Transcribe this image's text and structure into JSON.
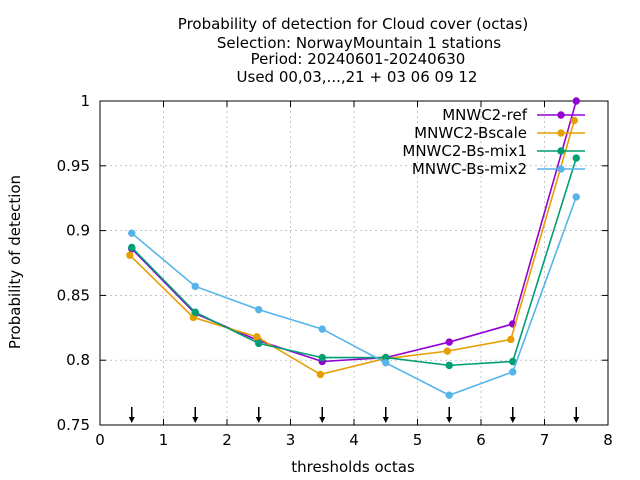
{
  "chart_data": {
    "type": "line",
    "title_lines": [
      "Probability of detection  for Cloud cover (octas)",
      "Selection: NorwayMountain      1 stations",
      "Period: 20240601-20240630",
      "Used 00,03,...,21 + 03 06 09 12"
    ],
    "xlabel": "thresholds octas",
    "ylabel": "Probability of detection",
    "xlim": [
      0,
      8
    ],
    "ylim": [
      0.75,
      1.0
    ],
    "x_ticks": [
      "0",
      "1",
      "2",
      "3",
      "4",
      "5",
      "6",
      "7",
      "8"
    ],
    "y_ticks": [
      "0.75",
      "0.8",
      "0.85",
      "0.9",
      "0.95",
      "1"
    ],
    "x_tick_values": [
      0,
      1,
      2,
      3,
      4,
      5,
      6,
      7,
      8
    ],
    "y_tick_values": [
      0.75,
      0.8,
      0.85,
      0.9,
      0.95,
      1.0
    ],
    "grid": true,
    "legend_position": "top-right",
    "arrow_markers_x": [
      0.5,
      1.5,
      2.5,
      3.5,
      4.5,
      5.5,
      6.5,
      7.5
    ],
    "x": [
      0.5,
      1.5,
      2.5,
      3.5,
      4.5,
      5.5,
      6.5,
      7.5
    ],
    "series": [
      {
        "name": "MNWC2-ref",
        "color": "#9400d3",
        "x": [
          0.5,
          1.5,
          2.5,
          3.5,
          4.5,
          5.5,
          6.5,
          7.5
        ],
        "values": [
          0.886,
          0.836,
          0.815,
          0.799,
          0.802,
          0.814,
          0.828,
          1.0
        ]
      },
      {
        "name": "MNWC2-Bscale",
        "color": "#e69f00",
        "x": [
          0.47,
          1.47,
          2.47,
          3.47,
          4.47,
          5.47,
          6.47,
          7.47
        ],
        "values": [
          0.881,
          0.833,
          0.818,
          0.789,
          0.801,
          0.807,
          0.816,
          0.985
        ]
      },
      {
        "name": "MNWC2-Bs-mix1",
        "color": "#009e73",
        "x": [
          0.5,
          1.5,
          2.5,
          3.5,
          4.5,
          5.5,
          6.5,
          7.5
        ],
        "values": [
          0.887,
          0.837,
          0.813,
          0.802,
          0.802,
          0.796,
          0.799,
          0.956
        ]
      },
      {
        "name": "MNWC-Bs-mix2",
        "color": "#56b4e9",
        "x": [
          0.5,
          1.5,
          2.5,
          3.5,
          4.5,
          5.5,
          6.5,
          7.5
        ],
        "values": [
          0.898,
          0.857,
          0.839,
          0.824,
          0.798,
          0.773,
          0.791,
          0.926
        ]
      }
    ]
  }
}
